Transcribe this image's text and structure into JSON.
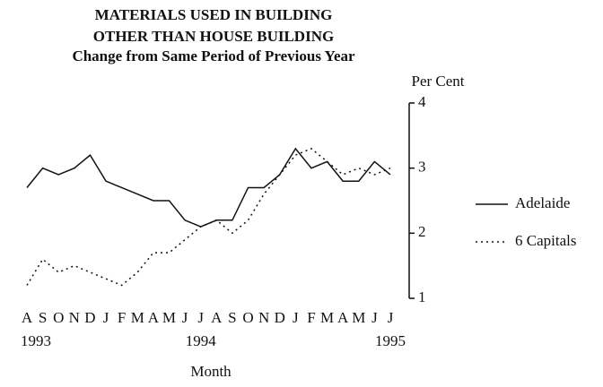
{
  "chart_data": {
    "type": "line",
    "title": [
      "MATERIALS USED IN BUILDING",
      "OTHER THAN HOUSE BUILDING",
      "Change from Same Period of Previous Year"
    ],
    "y_axis_label": "Per Cent",
    "x_axis_label": "Month",
    "categories": [
      "A",
      "S",
      "O",
      "N",
      "D",
      "J",
      "F",
      "M",
      "A",
      "M",
      "J",
      "J",
      "A",
      "S",
      "O",
      "N",
      "D",
      "J",
      "F",
      "M",
      "A",
      "M",
      "J",
      "J"
    ],
    "category_years": [
      "1993",
      null,
      null,
      null,
      null,
      null,
      null,
      null,
      null,
      null,
      null,
      "1994",
      null,
      null,
      null,
      null,
      null,
      null,
      null,
      null,
      null,
      null,
      null,
      "1995"
    ],
    "ylim": [
      1,
      4
    ],
    "yticks": [
      1,
      2,
      3,
      4
    ],
    "series": [
      {
        "name": "Adelaide",
        "color": "#111111",
        "dash": "solid",
        "values": [
          2.7,
          3.0,
          2.9,
          3.0,
          3.2,
          2.8,
          2.7,
          2.6,
          2.5,
          2.5,
          2.2,
          2.1,
          2.2,
          2.2,
          2.7,
          2.7,
          2.9,
          3.3,
          3.0,
          3.1,
          2.8,
          2.8,
          3.1,
          2.9
        ]
      },
      {
        "name": "6 Capitals",
        "color": "#111111",
        "dash": "dotted",
        "values": [
          1.2,
          1.6,
          1.4,
          1.5,
          1.4,
          1.3,
          1.2,
          1.4,
          1.7,
          1.7,
          1.9,
          2.1,
          2.2,
          2.0,
          2.2,
          2.6,
          2.9,
          3.2,
          3.3,
          3.1,
          2.9,
          3.0,
          2.9,
          3.0
        ]
      }
    ]
  }
}
